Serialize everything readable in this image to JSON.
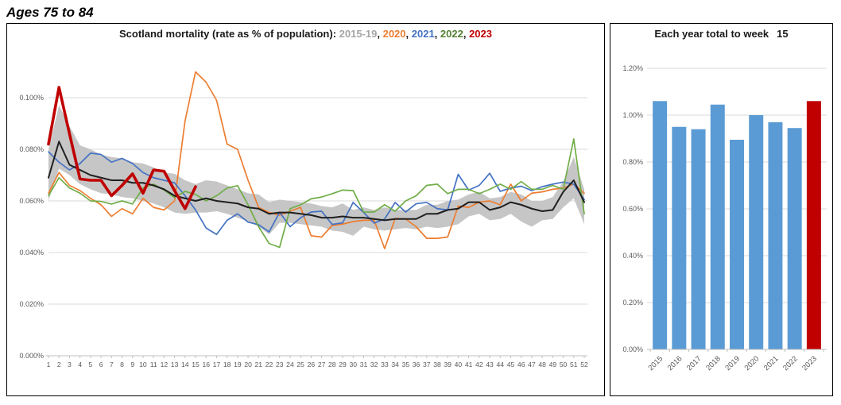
{
  "page_title": "Ages 75 to 84",
  "colors": {
    "avg": "#1f1f1f",
    "band": "#c6c6c6",
    "y2020": "#ED7D31",
    "y2021": "#4472C4",
    "y2022": "#70AD47",
    "y2023": "#C00000",
    "bar_blue": "#5B9BD5",
    "bar_red": "#C00000",
    "gridline": "#D9D9D9",
    "axis_line": "#BFBFBF",
    "tick_label": "#595959",
    "title_gray": "#A6A6A6",
    "title_green": "#548235"
  },
  "chart_data": [
    {
      "type": "line",
      "title": "Scotland mortality (rate as % of population): 2015-19, 2020, 2021, 2022, 2023",
      "title_segments": [
        {
          "text": "Scotland mortality (rate as % of population): ",
          "color": "#1a1a1a"
        },
        {
          "text": "2015-19",
          "color": "#A6A6A6"
        },
        {
          "text": ", ",
          "color": "#1a1a1a"
        },
        {
          "text": "2020",
          "color": "#ED7D31"
        },
        {
          "text": ", ",
          "color": "#1a1a1a"
        },
        {
          "text": "2021",
          "color": "#4472C4"
        },
        {
          "text": ", ",
          "color": "#1a1a1a"
        },
        {
          "text": "2022",
          "color": "#548235"
        },
        {
          "text": ", ",
          "color": "#1a1a1a"
        },
        {
          "text": "2023",
          "color": "#C00000"
        }
      ],
      "x_labels": [
        "1",
        "2",
        "3",
        "4",
        "5",
        "6",
        "7",
        "8",
        "9",
        "10",
        "11",
        "12",
        "13",
        "14",
        "15",
        "16",
        "17",
        "18",
        "19",
        "20",
        "21",
        "22",
        "23",
        "24",
        "25",
        "26",
        "27",
        "28",
        "29",
        "30",
        "31",
        "32",
        "33",
        "34",
        "35",
        "36",
        "37",
        "38",
        "39",
        "40",
        "41",
        "42",
        "43",
        "44",
        "45",
        "46",
        "47",
        "48",
        "49",
        "50",
        "51",
        "52"
      ],
      "y_tick_labels": [
        "0.000%",
        "0.020%",
        "0.040%",
        "0.060%",
        "0.080%",
        "0.100%"
      ],
      "y_ticks": [
        0,
        0.02,
        0.04,
        0.06,
        0.08,
        0.1
      ],
      "ylim": [
        0,
        0.112
      ],
      "grid": true,
      "legend_position": "in-title",
      "series": [
        {
          "name": "2015-19 min-max band",
          "kind": "band",
          "hi": [
            0.08,
            0.097,
            0.089,
            0.0815,
            0.08,
            0.078,
            0.077,
            0.0765,
            0.075,
            0.0745,
            0.073,
            0.071,
            0.0705,
            0.068,
            0.0665,
            0.068,
            0.0675,
            0.066,
            0.0645,
            0.063,
            0.0625,
            0.0595,
            0.0605,
            0.06,
            0.0595,
            0.059,
            0.058,
            0.0575,
            0.059,
            0.0565,
            0.0575,
            0.0565,
            0.0575,
            0.0565,
            0.0565,
            0.0565,
            0.0585,
            0.0585,
            0.06,
            0.0605,
            0.0625,
            0.0635,
            0.061,
            0.0615,
            0.0635,
            0.0625,
            0.06,
            0.06,
            0.0615,
            0.0675,
            0.077,
            0.0645
          ],
          "lo": [
            0.06,
            0.0725,
            0.07,
            0.0665,
            0.0645,
            0.063,
            0.0625,
            0.0615,
            0.061,
            0.06,
            0.059,
            0.0575,
            0.0555,
            0.055,
            0.0555,
            0.0555,
            0.056,
            0.055,
            0.0535,
            0.052,
            0.05,
            0.047,
            0.0515,
            0.0515,
            0.051,
            0.0505,
            0.05,
            0.0485,
            0.048,
            0.0465,
            0.05,
            0.049,
            0.0485,
            0.049,
            0.0495,
            0.049,
            0.05,
            0.0495,
            0.05,
            0.051,
            0.054,
            0.055,
            0.0525,
            0.053,
            0.055,
            0.052,
            0.05,
            0.0525,
            0.053,
            0.0575,
            0.061,
            0.051
          ]
        },
        {
          "name": "2020",
          "kind": "line",
          "values": [
            0.063,
            0.071,
            0.066,
            0.064,
            0.061,
            0.0585,
            0.054,
            0.057,
            0.055,
            0.061,
            0.0575,
            0.0565,
            0.06,
            0.091,
            0.11,
            0.106,
            0.099,
            0.082,
            0.08,
            0.068,
            0.0575,
            0.0555,
            0.0545,
            0.056,
            0.0575,
            0.0465,
            0.046,
            0.0505,
            0.051,
            0.052,
            0.0525,
            0.0525,
            0.0415,
            0.0532,
            0.053,
            0.05,
            0.0455,
            0.0455,
            0.046,
            0.058,
            0.0575,
            0.0595,
            0.06,
            0.0585,
            0.0665,
            0.06,
            0.063,
            0.0635,
            0.0645,
            0.065,
            0.0665,
            0.063
          ]
        },
        {
          "name": "2021",
          "kind": "line",
          "values": [
            0.079,
            0.075,
            0.072,
            0.0745,
            0.0785,
            0.078,
            0.075,
            0.0765,
            0.0745,
            0.071,
            0.069,
            0.068,
            0.067,
            0.062,
            0.0565,
            0.0495,
            0.047,
            0.0525,
            0.055,
            0.0518,
            0.0508,
            0.048,
            0.0556,
            0.05,
            0.0535,
            0.0557,
            0.056,
            0.0509,
            0.0515,
            0.0594,
            0.0555,
            0.0514,
            0.053,
            0.0594,
            0.0557,
            0.0589,
            0.0594,
            0.057,
            0.0565,
            0.0703,
            0.0642,
            0.066,
            0.0707,
            0.0637,
            0.065,
            0.0657,
            0.064,
            0.0655,
            0.0665,
            0.0673,
            0.0665,
            0.0605
          ]
        },
        {
          "name": "2022",
          "kind": "line",
          "values": [
            0.062,
            0.069,
            0.065,
            0.063,
            0.06,
            0.0598,
            0.0588,
            0.06,
            0.0588,
            0.065,
            0.0665,
            0.0642,
            0.0613,
            0.0637,
            0.0625,
            0.06,
            0.062,
            0.065,
            0.0659,
            0.0585,
            0.05,
            0.0435,
            0.042,
            0.057,
            0.0585,
            0.0608,
            0.0615,
            0.0628,
            0.0642,
            0.064,
            0.0557,
            0.0557,
            0.0585,
            0.056,
            0.06,
            0.062,
            0.066,
            0.0665,
            0.0628,
            0.0645,
            0.0645,
            0.0628,
            0.0645,
            0.0665,
            0.0645,
            0.0675,
            0.0645,
            0.0645,
            0.066,
            0.0645,
            0.084,
            0.055
          ]
        },
        {
          "name": "2015-19 average",
          "kind": "line",
          "values": [
            0.069,
            0.083,
            0.074,
            0.072,
            0.07,
            0.069,
            0.068,
            0.068,
            0.067,
            0.067,
            0.066,
            0.0645,
            0.062,
            0.061,
            0.06,
            0.061,
            0.06,
            0.0595,
            0.059,
            0.0575,
            0.057,
            0.055,
            0.0555,
            0.0555,
            0.055,
            0.0545,
            0.0535,
            0.0535,
            0.054,
            0.0535,
            0.0535,
            0.053,
            0.0525,
            0.053,
            0.053,
            0.053,
            0.055,
            0.055,
            0.0565,
            0.057,
            0.0595,
            0.0595,
            0.0565,
            0.0575,
            0.0595,
            0.0585,
            0.057,
            0.056,
            0.0565,
            0.0635,
            0.068,
            0.0595
          ]
        },
        {
          "name": "2023",
          "kind": "line",
          "values": [
            0.082,
            0.104,
            0.086,
            0.0685,
            0.068,
            0.068,
            0.062,
            0.066,
            0.0705,
            0.063,
            0.072,
            0.0715,
            0.064,
            0.057,
            0.0655
          ]
        }
      ]
    },
    {
      "type": "bar",
      "title": "Each year total to week",
      "week_label": "15",
      "categories": [
        "2015",
        "2016",
        "2017",
        "2018",
        "2019",
        "2020",
        "2021",
        "2022",
        "2023"
      ],
      "values": [
        1.06,
        0.95,
        0.94,
        1.045,
        0.895,
        1.0,
        0.97,
        0.945,
        1.06
      ],
      "highlight_category": "2023",
      "y_tick_labels": [
        "0.00%",
        "0.20%",
        "0.40%",
        "0.60%",
        "0.80%",
        "1.00%",
        "1.20%"
      ],
      "y_ticks": [
        0,
        0.2,
        0.4,
        0.6,
        0.8,
        1.0,
        1.2
      ],
      "ylim": [
        0,
        1.25
      ],
      "grid": true
    }
  ]
}
